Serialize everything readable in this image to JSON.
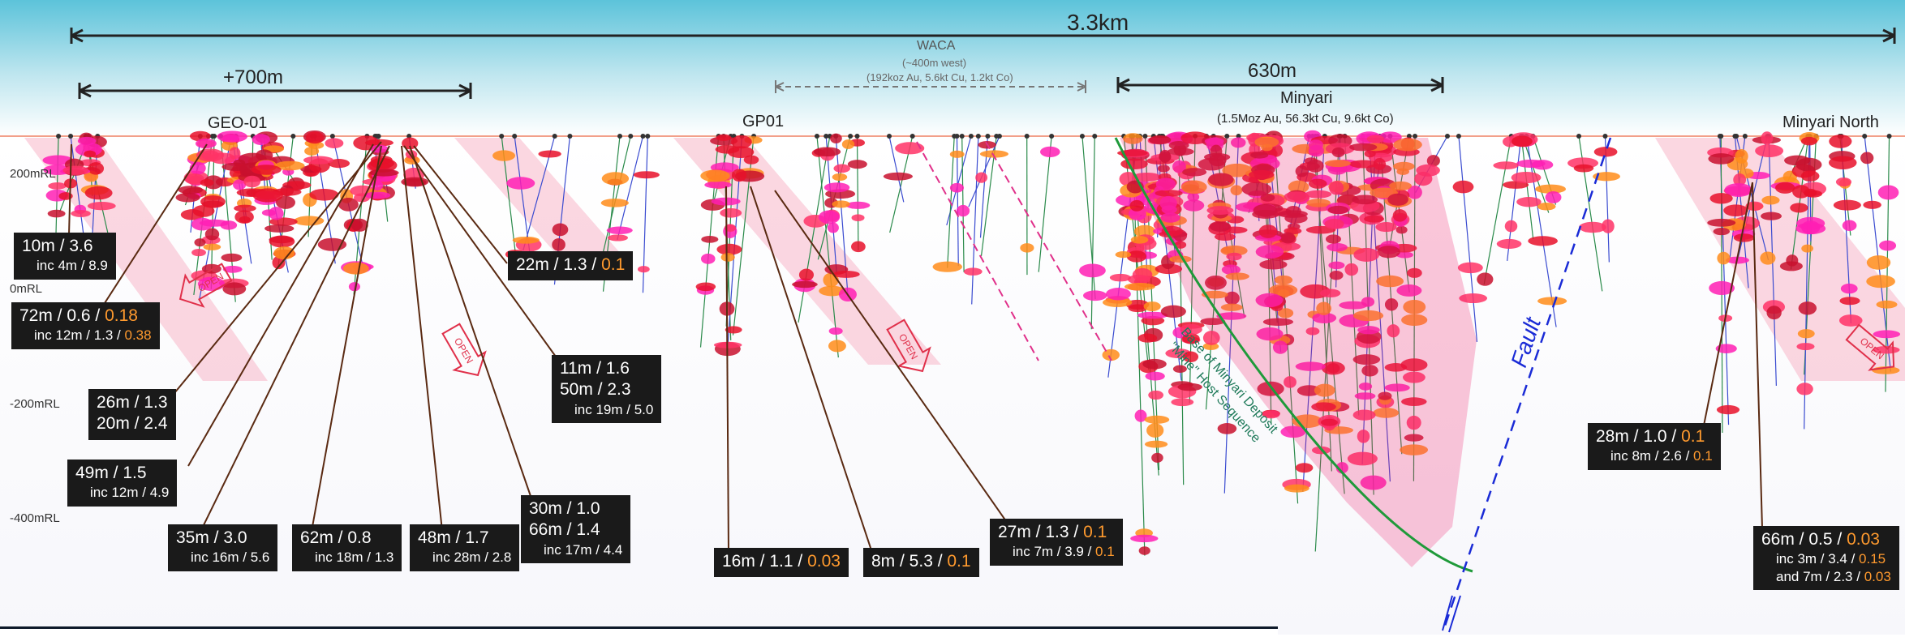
{
  "dimensions": {
    "total": "3.3km",
    "geo": "+700m",
    "minyari": "630m"
  },
  "waca": {
    "name": "WACA",
    "distance": "(~400m west)",
    "resource": "(192koz Au, 5.6kt Cu, 1.2kt Co)"
  },
  "deposits": {
    "geo01": "GEO-01",
    "gp01": "GP01",
    "minyari": "Minyari",
    "minyari_resource": "(1.5Moz Au, 56.3kt Cu, 9.6kt Co)",
    "minyari_north": "Minyari North"
  },
  "rl_labels": [
    "200mRL",
    "0mRL",
    "-200mRL",
    "-400mRL"
  ],
  "annotations": {
    "open": "OPEN",
    "fault": "Fault",
    "base_line1": "Base of Minyari Deposit",
    "base_line2": "\"Mine\" Host Sequence"
  },
  "intercepts": {
    "i1": {
      "main": "10m / 3.6",
      "inc": "inc 4m / 8.9"
    },
    "i2": {
      "main_a": "72m / 0.6 / ",
      "main_b": "0.18",
      "inc_a": "inc 12m / 1.3 / ",
      "inc_b": "0.38"
    },
    "i3": {
      "main_a": "22m / 1.3 / ",
      "main_b": "0.1"
    },
    "i4": {
      "line1": "26m / 1.3",
      "line2": "20m / 2.4"
    },
    "i5": {
      "main": "49m / 1.5",
      "inc": "inc 12m / 4.9"
    },
    "i6": {
      "line1": "11m / 1.6",
      "line2": "50m / 2.3",
      "inc": "inc 19m / 5.0"
    },
    "i7": {
      "main": "35m / 3.0",
      "inc": "inc 16m / 5.6"
    },
    "i8": {
      "main": "62m / 0.8",
      "inc": "inc 18m / 1.3"
    },
    "i9": {
      "main": "48m / 1.7",
      "inc": "inc 28m / 2.8"
    },
    "i10": {
      "line1": "30m / 1.0",
      "line2": "66m / 1.4",
      "inc": "inc 17m / 4.4"
    },
    "i11": {
      "main_a": "16m / 1.1 / ",
      "main_b": "0.03"
    },
    "i12": {
      "main_a": "8m / 5.3 / ",
      "main_b": "0.1"
    },
    "i13": {
      "main_a": "27m / 1.3 / ",
      "main_b": "0.1",
      "inc_a": "inc 7m / 3.9 / ",
      "inc_b": "0.1"
    },
    "i14": {
      "main_a": "28m / 1.0 / ",
      "main_b": "0.1",
      "inc_a": "inc 8m / 2.6 / ",
      "inc_b": "0.1"
    },
    "i15": {
      "main_a": "66m / 0.5 / ",
      "main_b": "0.03",
      "inc_a": "inc 3m / 3.4 / ",
      "inc_b": "0.15",
      "and_a": "and 7m / 2.3 / ",
      "and_b": "0.03"
    }
  },
  "colors": {
    "sky_top": "#63c7dd",
    "sky_bottom": "#ffffff",
    "mineralisation_red": "#e8102a",
    "mineralisation_magenta": "#ff1fb4",
    "mineralisation_orange": "#ff8c1a",
    "open_zone": "#f9c6d2",
    "leader": "#5a2a12",
    "fault": "#1a2bd6",
    "host_contact": "#1f9a3a",
    "copper_value": "#ff9a2e"
  }
}
